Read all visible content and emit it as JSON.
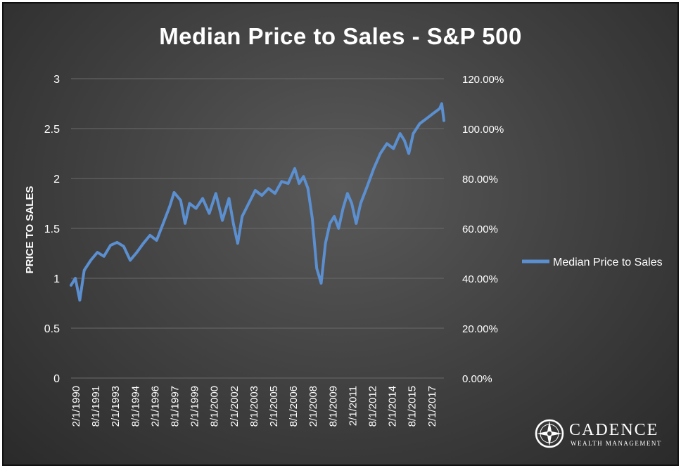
{
  "chart_data": {
    "type": "line",
    "title": "Median Price to Sales - S&P 500",
    "xlabel": "",
    "ylabel": "PRICE TO SALES",
    "ylim": [
      0,
      3
    ],
    "y_ticks": [
      "0",
      "0.5",
      "1",
      "1.5",
      "2",
      "2.5",
      "3"
    ],
    "y2lim": [
      0,
      1.2
    ],
    "y2_ticks": [
      "0.00%",
      "20.00%",
      "40.00%",
      "60.00%",
      "80.00%",
      "100.00%",
      "120.00%"
    ],
    "x_tick_labels": [
      "2/1/1990",
      "8/1/1991",
      "2/1/1993",
      "8/1/1994",
      "2/1/1996",
      "8/1/1997",
      "2/1/1999",
      "8/1/2000",
      "2/1/2002",
      "8/1/2003",
      "2/1/2005",
      "8/1/2006",
      "2/1/2008",
      "8/1/2009",
      "2/1/2011",
      "8/1/2012",
      "2/1/2014",
      "8/1/2015",
      "2/1/2017"
    ],
    "xlim": [
      "1990-02-01",
      "2018-06-01"
    ],
    "legend_position": "right",
    "grid": true,
    "series": [
      {
        "name": "Median Price to Sales",
        "color": "#5b8fd0",
        "x": [
          "1990-02-01",
          "1990-06-01",
          "1990-10-01",
          "1991-02-01",
          "1991-08-01",
          "1992-02-01",
          "1992-08-01",
          "1993-02-01",
          "1993-08-01",
          "1994-02-01",
          "1994-08-01",
          "1995-02-01",
          "1995-08-01",
          "1996-02-01",
          "1996-08-01",
          "1997-02-01",
          "1997-08-01",
          "1997-12-01",
          "1998-06-01",
          "1998-10-01",
          "1999-02-01",
          "1999-08-01",
          "2000-02-01",
          "2000-08-01",
          "2001-02-01",
          "2001-08-01",
          "2002-02-01",
          "2002-06-01",
          "2002-10-01",
          "2003-02-01",
          "2003-08-01",
          "2004-02-01",
          "2004-08-01",
          "2005-02-01",
          "2005-08-01",
          "2006-02-01",
          "2006-08-01",
          "2007-02-01",
          "2007-06-01",
          "2007-10-01",
          "2008-02-01",
          "2008-06-01",
          "2008-10-01",
          "2009-02-01",
          "2009-06-01",
          "2009-10-01",
          "2010-02-01",
          "2010-06-01",
          "2010-10-01",
          "2011-02-01",
          "2011-06-01",
          "2011-10-01",
          "2012-02-01",
          "2012-08-01",
          "2013-02-01",
          "2013-08-01",
          "2014-02-01",
          "2014-08-01",
          "2015-02-01",
          "2015-06-01",
          "2015-10-01",
          "2016-02-01",
          "2016-08-01",
          "2017-02-01",
          "2017-08-01",
          "2018-02-01",
          "2018-04-01",
          "2018-06-01"
        ],
        "values": [
          0.93,
          1.0,
          0.78,
          1.08,
          1.18,
          1.26,
          1.22,
          1.33,
          1.36,
          1.32,
          1.18,
          1.26,
          1.35,
          1.43,
          1.38,
          1.55,
          1.72,
          1.86,
          1.78,
          1.55,
          1.75,
          1.7,
          1.8,
          1.65,
          1.85,
          1.58,
          1.8,
          1.55,
          1.35,
          1.62,
          1.75,
          1.88,
          1.83,
          1.9,
          1.85,
          1.97,
          1.95,
          2.1,
          1.95,
          2.02,
          1.9,
          1.6,
          1.1,
          0.95,
          1.35,
          1.55,
          1.62,
          1.5,
          1.7,
          1.85,
          1.75,
          1.55,
          1.75,
          1.92,
          2.1,
          2.25,
          2.35,
          2.3,
          2.45,
          2.38,
          2.25,
          2.45,
          2.55,
          2.6,
          2.65,
          2.7,
          2.75,
          2.58
        ]
      }
    ]
  },
  "logo": {
    "name": "CADENCE",
    "sub": "WEALTH MANAGEMENT"
  }
}
